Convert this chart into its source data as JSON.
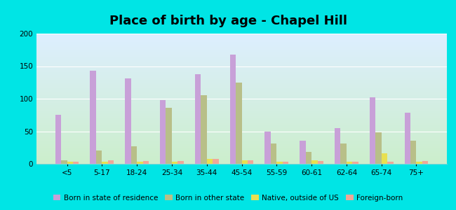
{
  "title": "Place of birth by age - Chapel Hill",
  "categories": [
    "<5",
    "5-17",
    "18-24",
    "25-34",
    "35-44",
    "45-54",
    "55-59",
    "60-61",
    "62-64",
    "65-74",
    "75+"
  ],
  "series": {
    "Born in state of residence": [
      75,
      143,
      131,
      98,
      138,
      168,
      50,
      36,
      55,
      102,
      79
    ],
    "Born in other state": [
      5,
      20,
      27,
      86,
      105,
      125,
      31,
      18,
      31,
      48,
      36
    ],
    "Native, outside of US": [
      3,
      3,
      3,
      3,
      8,
      5,
      3,
      5,
      3,
      16,
      3
    ],
    "Foreign-born": [
      3,
      5,
      4,
      4,
      8,
      5,
      3,
      4,
      3,
      3,
      4
    ]
  },
  "colors": {
    "Born in state of residence": "#c8a0d8",
    "Born in other state": "#b8bf88",
    "Native, outside of US": "#e8e050",
    "Foreign-born": "#f0a898"
  },
  "ylim": [
    0,
    200
  ],
  "yticks": [
    0,
    50,
    100,
    150,
    200
  ],
  "plot_bg_gradient_top": "#ddeeff",
  "plot_bg_gradient_bottom": "#cceecc",
  "outer_bg": "#00e5e5",
  "title_fontsize": 13,
  "legend_fontsize": 7.5,
  "tick_fontsize": 7.5,
  "bar_width": 0.17
}
